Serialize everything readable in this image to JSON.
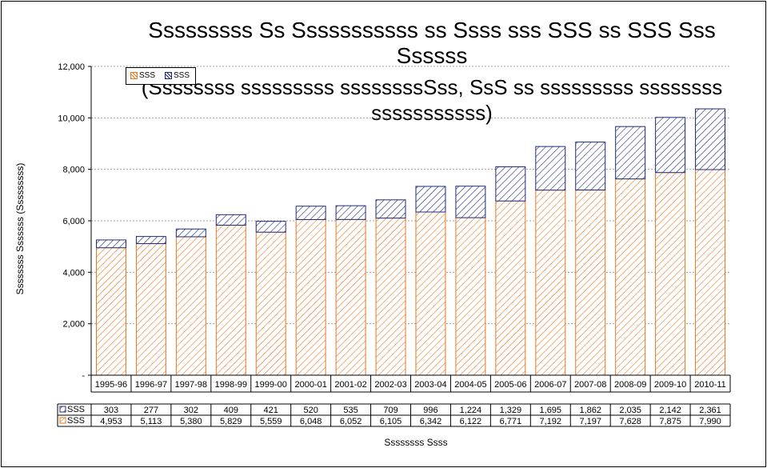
{
  "chart_data": {
    "type": "bar",
    "stacked": true,
    "title": "Sssssssss Ss Sssssssssss ss Ssss sss SSS ss SSS Sss Ssssss",
    "subtitle": "(Ssssssss sssssssss ssssssssSss, SsS ss sssssssss ssssssss sssssssssss)",
    "xlabel": "Ssssssss Ssss",
    "ylabel": "Ssssssss Sssssss (Sssssssss)",
    "ylim": [
      0,
      12000
    ],
    "yticks": [
      {
        "value": 0,
        "label": "-"
      },
      {
        "value": 2000,
        "label": "2,000"
      },
      {
        "value": 4000,
        "label": "4,000"
      },
      {
        "value": 6000,
        "label": "6,000"
      },
      {
        "value": 8000,
        "label": "8,000"
      },
      {
        "value": 10000,
        "label": "10,000"
      },
      {
        "value": 12000,
        "label": "12,000"
      }
    ],
    "grid": true,
    "legend_position": "top-left",
    "categories": [
      "1995-96",
      "1996-97",
      "1997-98",
      "1998-99",
      "1999-00",
      "2000-01",
      "2001-02",
      "2002-03",
      "2003-04",
      "2004-05",
      "2005-06",
      "2006-07",
      "2007-08",
      "2008-09",
      "2009-10",
      "2010-11"
    ],
    "series": [
      {
        "name": "SSS",
        "color": "#e87722",
        "pattern": "hatch",
        "values": [
          4953,
          5113,
          5380,
          5829,
          5559,
          6048,
          6052,
          6105,
          6342,
          6122,
          6771,
          7192,
          7197,
          7628,
          7875,
          7990
        ],
        "labels": [
          "4,953",
          "5,113",
          "5,380",
          "5,829",
          "5,559",
          "6,048",
          "6,052",
          "6,105",
          "6,342",
          "6,122",
          "6,771",
          "7,192",
          "7,197",
          "7,628",
          "7,875",
          "7,990"
        ]
      },
      {
        "name": "SSS",
        "color": "#1f2a7a",
        "pattern": "hatch",
        "values": [
          303,
          277,
          302,
          409,
          421,
          520,
          535,
          709,
          996,
          1224,
          1329,
          1695,
          1862,
          2035,
          2142,
          2361
        ],
        "labels": [
          "303",
          "277",
          "302",
          "409",
          "421",
          "520",
          "535",
          "709",
          "996",
          "1,224",
          "1,329",
          "1,695",
          "1,862",
          "2,035",
          "2,142",
          "2,361"
        ]
      }
    ]
  }
}
